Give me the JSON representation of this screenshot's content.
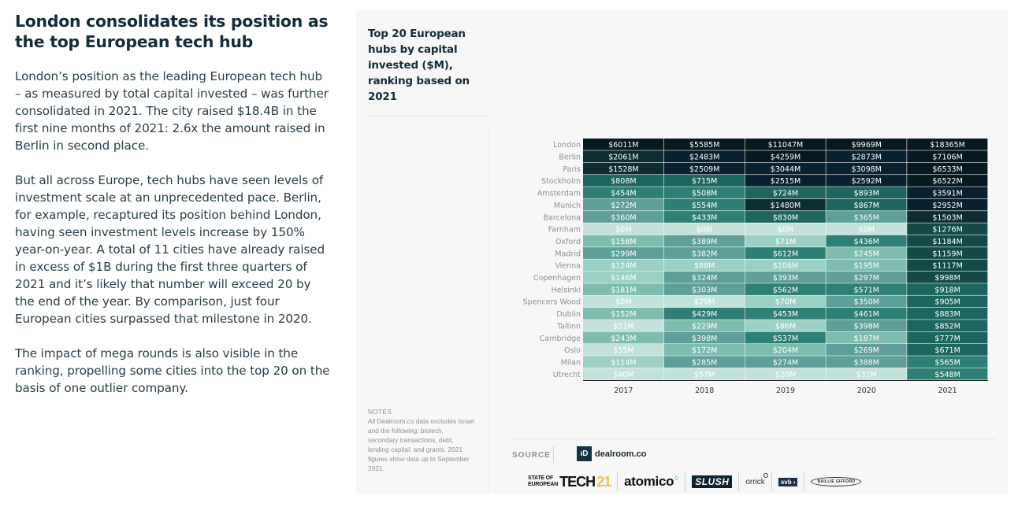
{
  "article": {
    "headline": "London consolidates its position as the top European tech hub",
    "paragraphs": [
      "London’s position as the leading European tech hub – as measured by total capital invested – was further consolidated in 2021. The city raised $18.4B in the first nine months of 2021: 2.6x the amount raised in Berlin in second place.",
      "But all across Europe, tech hubs have seen levels of investment scale at an unprecedented pace. Berlin, for example, recaptured its position behind London, having seen investment levels increase by 150% year-on-year. A total of 11 cities have already raised in excess of $1B during the first three quarters of 2021 and it’s likely that number will exceed 20 by the end of the year. By comparison, just four European cities surpassed that milestone in 2020.",
      "The impact of mega rounds is also visible in the ranking, propelling some cities into the top 20 on the basis of one outlier company."
    ]
  },
  "notes": {
    "label": "NOTES",
    "text": "All Dealroom.co data excludes Israel and the following: biotech, secondary transactions, debt, lending capital, and grants. 2021 figures show data up to September 2021."
  },
  "source": {
    "label": "SOURCE",
    "provider": "dealroom.co",
    "provider_mark": "ıD"
  },
  "logos": {
    "sot_line1": "STATE OF",
    "sot_line2": "EUROPEAN",
    "sot_word": "TECH",
    "sot_year": "21",
    "atomico": "atomico",
    "slush": "SLUSH",
    "orrick": "orrick",
    "svb": "svb ›",
    "baillie": "BAILLIE GIFFORD"
  },
  "colors": {
    "scale": [
      "#c4e2dc",
      "#9dd0c5",
      "#7fbcb0",
      "#5f9f99",
      "#2e7f75",
      "#1d6660",
      "#134a48",
      "#0c2e33",
      "#082130",
      "#061820"
    ],
    "text_on_cell": "#ffffff",
    "row_label": "#8a9296"
  },
  "chart_data": {
    "type": "heatmap",
    "title": "Top 20 European hubs by capital invested ($M), ranking based on 2021",
    "xlabel": "",
    "ylabel": "",
    "unit": "$M",
    "x": [
      "2017",
      "2018",
      "2019",
      "2020",
      "2021"
    ],
    "y": [
      "London",
      "Berlin",
      "Paris",
      "Stockholm",
      "Amsterdam",
      "Munich",
      "Barcelona",
      "Farnham",
      "Oxford",
      "Madrid",
      "Vienna",
      "Copenhagen",
      "Helsinki",
      "Spencers Wood",
      "Dublin",
      "Tallinn",
      "Cambridge",
      "Oslo",
      "Milan",
      "Utrecht"
    ],
    "values": [
      [
        6011,
        5585,
        11047,
        9969,
        18365
      ],
      [
        2061,
        2483,
        4259,
        2873,
        7106
      ],
      [
        1528,
        2509,
        3044,
        3098,
        6533
      ],
      [
        808,
        715,
        2515,
        2592,
        6522
      ],
      [
        454,
        508,
        724,
        893,
        3591
      ],
      [
        272,
        554,
        1480,
        867,
        2952
      ],
      [
        360,
        433,
        830,
        365,
        1503
      ],
      [
        0,
        0,
        0,
        0,
        1276
      ],
      [
        158,
        389,
        71,
        436,
        1184
      ],
      [
        299,
        382,
        612,
        245,
        1159
      ],
      [
        124,
        88,
        106,
        195,
        1117
      ],
      [
        146,
        324,
        393,
        297,
        998
      ],
      [
        181,
        303,
        562,
        571,
        918
      ],
      [
        0,
        29,
        70,
        350,
        905
      ],
      [
        152,
        429,
        453,
        461,
        883
      ],
      [
        51,
        229,
        86,
        398,
        852
      ],
      [
        243,
        398,
        537,
        187,
        777
      ],
      [
        55,
        172,
        204,
        269,
        671
      ],
      [
        114,
        285,
        274,
        388,
        565
      ],
      [
        40,
        57,
        20,
        32,
        548
      ]
    ],
    "labels": [
      [
        "$6011M",
        "$5585M",
        "$11047M",
        "$9969M",
        "$18365M"
      ],
      [
        "$2061M",
        "$2483M",
        "$4259M",
        "$2873M",
        "$7106M"
      ],
      [
        "$1528M",
        "$2509M",
        "$3044M",
        "$3098M",
        "$6533M"
      ],
      [
        "$808M",
        "$715M",
        "$2515M",
        "$2592M",
        "$6522M"
      ],
      [
        "$454M",
        "$508M",
        "$724M",
        "$893M",
        "$3591M"
      ],
      [
        "$272M",
        "$554M",
        "$1480M",
        "$867M",
        "$2952M"
      ],
      [
        "$360M",
        "$433M",
        "$830M",
        "$365M",
        "$1503M"
      ],
      [
        "$0M",
        "$0M",
        "$0M",
        "$0M",
        "$1276M"
      ],
      [
        "$158M",
        "$389M",
        "$71M",
        "$436M",
        "$1184M"
      ],
      [
        "$299M",
        "$382M",
        "$612M",
        "$245M",
        "$1159M"
      ],
      [
        "$124M",
        "$88M",
        "$106M",
        "$195M",
        "$1117M"
      ],
      [
        "$146M",
        "$324M",
        "$393M",
        "$297M",
        "$998M"
      ],
      [
        "$181M",
        "$303M",
        "$562M",
        "$571M",
        "$918M"
      ],
      [
        "$0M",
        "$29M",
        "$70M",
        "$350M",
        "$905M"
      ],
      [
        "$152M",
        "$429M",
        "$453M",
        "$461M",
        "$883M"
      ],
      [
        "$51M",
        "$229M",
        "$86M",
        "$398M",
        "$852M"
      ],
      [
        "$243M",
        "$398M",
        "$537M",
        "$187M",
        "$777M"
      ],
      [
        "$55M",
        "$172M",
        "$204M",
        "$269M",
        "$671M"
      ],
      [
        "$114M",
        "$285M",
        "$274M",
        "$388M",
        "$565M"
      ],
      [
        "$40M",
        "$57M",
        "$20M",
        "$32M",
        "$548M"
      ]
    ],
    "color_thresholds": [
      0,
      60,
      150,
      250,
      400,
      650,
      950,
      1450,
      2300,
      4000
    ],
    "grid": false,
    "legend": "none"
  }
}
